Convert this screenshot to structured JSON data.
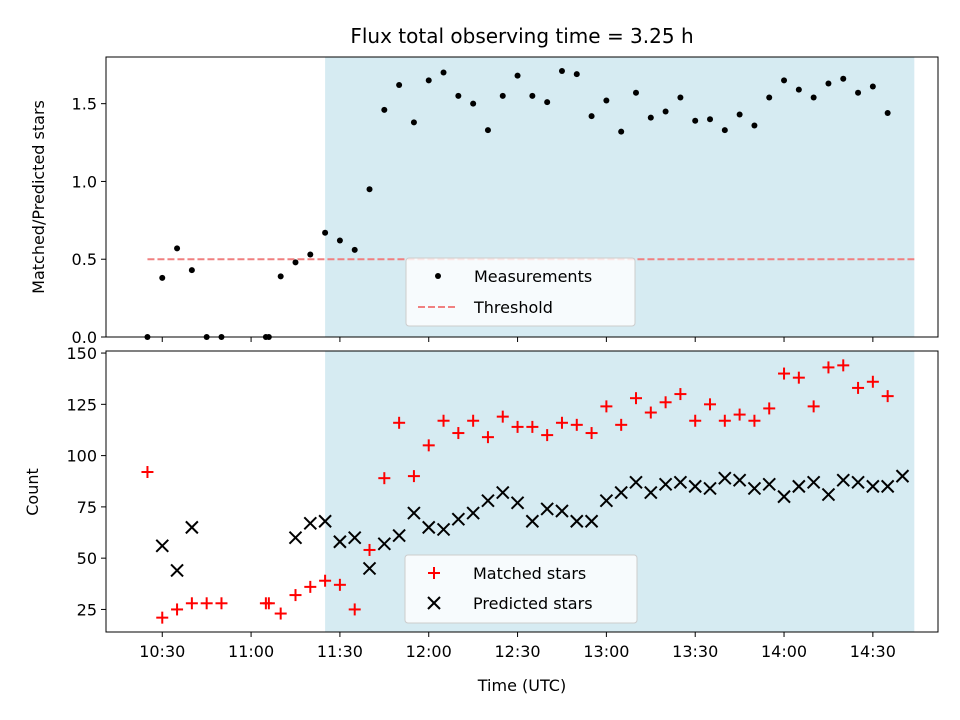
{
  "chart_data": {
    "title": "Flux total observing time = 3.25 h",
    "xlabel": "Time (UTC)",
    "x_ticks": [
      "10:30",
      "11:00",
      "11:30",
      "12:00",
      "12:30",
      "13:00",
      "13:30",
      "14:00",
      "14:30"
    ],
    "xlim": [
      "10:11",
      "14:52"
    ],
    "shaded_span": {
      "start": "11:25",
      "end": "14:44",
      "color": "#add8e6"
    },
    "colors": {
      "measurement": "#000000",
      "threshold": "#f08080",
      "matched": "#ff0000",
      "predicted": "#000000",
      "shade": "#add8e6"
    },
    "panels": [
      {
        "type": "scatter",
        "ylabel": "Matched/Predicted stars",
        "ylim": [
          0,
          1.8
        ],
        "y_ticks": [
          "0.0",
          "0.5",
          "1.0",
          "1.5"
        ],
        "legend": {
          "placement": "lower-center",
          "entries": [
            "Measurements",
            "Threshold"
          ]
        },
        "threshold": {
          "name": "Threshold",
          "value": 0.5,
          "x_start": "10:25",
          "x_end": "14:44"
        },
        "series": [
          {
            "name": "Measurements",
            "marker": "dot",
            "points": [
              [
                "10:25",
                0.0
              ],
              [
                "10:30",
                0.38
              ],
              [
                "10:35",
                0.57
              ],
              [
                "10:40",
                0.43
              ],
              [
                "10:45",
                0.0
              ],
              [
                "10:50",
                0.0
              ],
              [
                "11:05",
                0.0
              ],
              [
                "11:06",
                0.0
              ],
              [
                "11:10",
                0.39
              ],
              [
                "11:15",
                0.48
              ],
              [
                "11:20",
                0.53
              ],
              [
                "11:25",
                0.67
              ],
              [
                "11:30",
                0.62
              ],
              [
                "11:35",
                0.56
              ],
              [
                "11:40",
                0.95
              ],
              [
                "11:45",
                1.46
              ],
              [
                "11:50",
                1.62
              ],
              [
                "11:55",
                1.38
              ],
              [
                "12:00",
                1.65
              ],
              [
                "12:05",
                1.7
              ],
              [
                "12:10",
                1.55
              ],
              [
                "12:15",
                1.5
              ],
              [
                "12:20",
                1.33
              ],
              [
                "12:25",
                1.55
              ],
              [
                "12:30",
                1.68
              ],
              [
                "12:35",
                1.55
              ],
              [
                "12:40",
                1.51
              ],
              [
                "12:45",
                1.71
              ],
              [
                "12:50",
                1.69
              ],
              [
                "12:55",
                1.42
              ],
              [
                "13:00",
                1.52
              ],
              [
                "13:05",
                1.32
              ],
              [
                "13:10",
                1.57
              ],
              [
                "13:15",
                1.41
              ],
              [
                "13:20",
                1.45
              ],
              [
                "13:25",
                1.54
              ],
              [
                "13:30",
                1.39
              ],
              [
                "13:35",
                1.4
              ],
              [
                "13:40",
                1.33
              ],
              [
                "13:45",
                1.43
              ],
              [
                "13:50",
                1.36
              ],
              [
                "13:55",
                1.54
              ],
              [
                "14:00",
                1.65
              ],
              [
                "14:05",
                1.59
              ],
              [
                "14:10",
                1.54
              ],
              [
                "14:15",
                1.63
              ],
              [
                "14:20",
                1.66
              ],
              [
                "14:25",
                1.57
              ],
              [
                "14:30",
                1.61
              ],
              [
                "14:35",
                1.44
              ]
            ]
          }
        ]
      },
      {
        "type": "scatter",
        "ylabel": "Count",
        "ylim": [
          14,
          151
        ],
        "y_ticks": [
          "25",
          "50",
          "75",
          "100",
          "125",
          "150"
        ],
        "legend": {
          "placement": "lower-center",
          "entries": [
            "Matched stars",
            "Predicted stars"
          ]
        },
        "series": [
          {
            "name": "Matched stars",
            "marker": "plus",
            "points": [
              [
                "10:25",
                92
              ],
              [
                "10:30",
                21
              ],
              [
                "10:35",
                25
              ],
              [
                "10:40",
                28
              ],
              [
                "10:45",
                28
              ],
              [
                "10:50",
                28
              ],
              [
                "11:05",
                28
              ],
              [
                "11:06",
                28
              ],
              [
                "11:10",
                23
              ],
              [
                "11:15",
                32
              ],
              [
                "11:20",
                36
              ],
              [
                "11:25",
                39
              ],
              [
                "11:30",
                37
              ],
              [
                "11:35",
                25
              ],
              [
                "11:40",
                54
              ],
              [
                "11:45",
                89
              ],
              [
                "11:50",
                116
              ],
              [
                "11:55",
                90
              ],
              [
                "12:00",
                105
              ],
              [
                "12:05",
                117
              ],
              [
                "12:10",
                111
              ],
              [
                "12:15",
                117
              ],
              [
                "12:20",
                109
              ],
              [
                "12:25",
                119
              ],
              [
                "12:30",
                114
              ],
              [
                "12:35",
                114
              ],
              [
                "12:40",
                110
              ],
              [
                "12:45",
                116
              ],
              [
                "12:50",
                115
              ],
              [
                "12:55",
                111
              ],
              [
                "13:00",
                124
              ],
              [
                "13:05",
                115
              ],
              [
                "13:10",
                128
              ],
              [
                "13:15",
                121
              ],
              [
                "13:20",
                126
              ],
              [
                "13:25",
                130
              ],
              [
                "13:30",
                117
              ],
              [
                "13:35",
                125
              ],
              [
                "13:40",
                117
              ],
              [
                "13:45",
                120
              ],
              [
                "13:50",
                117
              ],
              [
                "13:55",
                123
              ],
              [
                "14:00",
                140
              ],
              [
                "14:05",
                138
              ],
              [
                "14:10",
                124
              ],
              [
                "14:15",
                143
              ],
              [
                "14:20",
                144
              ],
              [
                "14:25",
                133
              ],
              [
                "14:30",
                136
              ],
              [
                "14:35",
                129
              ]
            ]
          },
          {
            "name": "Predicted stars",
            "marker": "x",
            "points": [
              [
                "10:30",
                56
              ],
              [
                "10:35",
                44
              ],
              [
                "10:40",
                65
              ],
              [
                "11:15",
                60
              ],
              [
                "11:20",
                67
              ],
              [
                "11:25",
                68
              ],
              [
                "11:30",
                58
              ],
              [
                "11:35",
                60
              ],
              [
                "11:40",
                45
              ],
              [
                "11:45",
                57
              ],
              [
                "11:50",
                61
              ],
              [
                "11:55",
                72
              ],
              [
                "12:00",
                65
              ],
              [
                "12:05",
                64
              ],
              [
                "12:10",
                69
              ],
              [
                "12:15",
                72
              ],
              [
                "12:20",
                78
              ],
              [
                "12:25",
                82
              ],
              [
                "12:30",
                77
              ],
              [
                "12:35",
                68
              ],
              [
                "12:40",
                74
              ],
              [
                "12:45",
                73
              ],
              [
                "12:50",
                68
              ],
              [
                "12:55",
                68
              ],
              [
                "13:00",
                78
              ],
              [
                "13:05",
                82
              ],
              [
                "13:10",
                87
              ],
              [
                "13:15",
                82
              ],
              [
                "13:20",
                86
              ],
              [
                "13:25",
                87
              ],
              [
                "13:30",
                85
              ],
              [
                "13:35",
                84
              ],
              [
                "13:40",
                89
              ],
              [
                "13:45",
                88
              ],
              [
                "13:50",
                84
              ],
              [
                "13:55",
                86
              ],
              [
                "14:00",
                80
              ],
              [
                "14:05",
                85
              ],
              [
                "14:10",
                87
              ],
              [
                "14:15",
                81
              ],
              [
                "14:20",
                88
              ],
              [
                "14:25",
                87
              ],
              [
                "14:30",
                85
              ],
              [
                "14:35",
                85
              ],
              [
                "14:40",
                90
              ]
            ]
          }
        ]
      }
    ]
  }
}
